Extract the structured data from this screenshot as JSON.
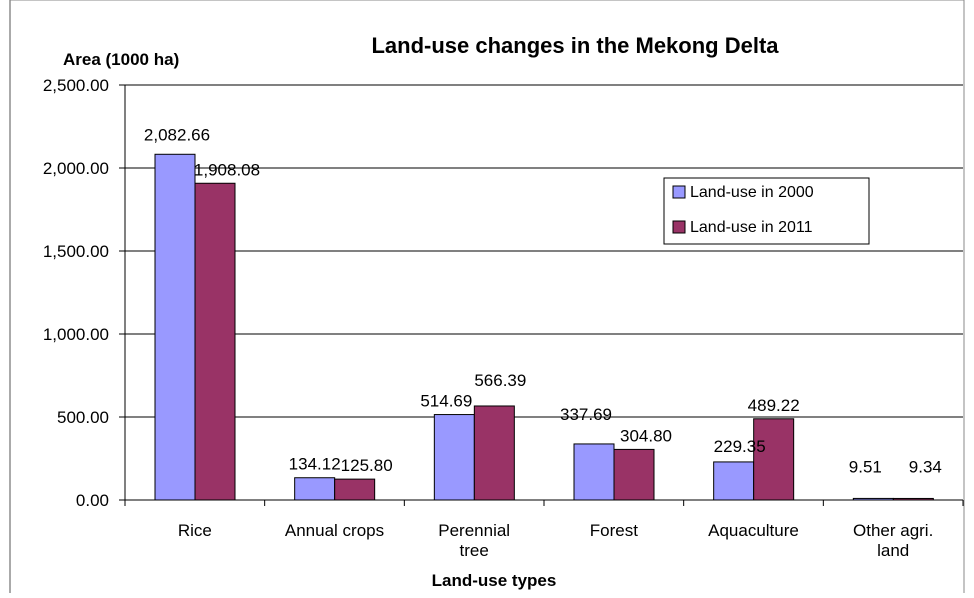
{
  "chart_data": {
    "type": "bar",
    "title": "Land-use changes in the Mekong Delta",
    "xlabel": "Land-use types",
    "ylabel": "Area (1000  ha)",
    "ylim": [
      0,
      2500
    ],
    "yticks": [
      "0.00",
      "500.00",
      "1,000.00",
      "1,500.00",
      "2,000.00",
      "2,500.00"
    ],
    "ytick_values": [
      0,
      500,
      1000,
      1500,
      2000,
      2500
    ],
    "categories": [
      [
        "Rice"
      ],
      [
        "Annual crops"
      ],
      [
        "Perennial",
        "tree"
      ],
      [
        "Forest"
      ],
      [
        "Aquaculture"
      ],
      [
        "Other agri.",
        "land"
      ]
    ],
    "series": [
      {
        "name": "Land-use in 2000",
        "color": "#9999ff",
        "values": [
          2082.66,
          134.12,
          514.69,
          337.69,
          229.35,
          9.51
        ],
        "labels": [
          "2,082.66",
          "134.12",
          "514.69",
          "337.69",
          "229.35",
          "9.51"
        ]
      },
      {
        "name": "Land-use in 2011",
        "color": "#993366",
        "values": [
          1908.08,
          125.8,
          566.39,
          304.8,
          489.22,
          9.34
        ],
        "labels": [
          "1,908.08",
          "125.80",
          "566.39",
          "304.80",
          "489.22",
          "9.34"
        ]
      }
    ],
    "grid": true,
    "legend_position": "top-right"
  }
}
